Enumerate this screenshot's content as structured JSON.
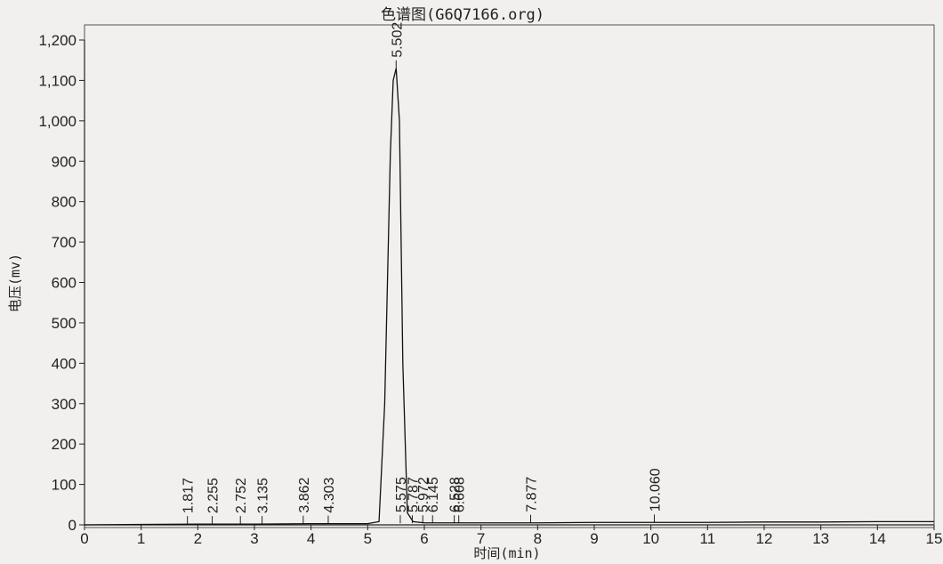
{
  "chart_data": {
    "type": "line",
    "title": "色谱图(G6Q7166.org)",
    "xlabel": "时间(min)",
    "ylabel": "电压(mv)",
    "xlim": [
      0,
      15
    ],
    "ylim": [
      0,
      1200
    ],
    "x_ticks": [
      0,
      1,
      2,
      3,
      4,
      5,
      6,
      7,
      8,
      9,
      10,
      11,
      12,
      13,
      14,
      15
    ],
    "y_ticks": [
      0,
      100,
      200,
      300,
      400,
      500,
      600,
      700,
      800,
      900,
      1000,
      1100,
      1200
    ],
    "y_tick_labels": [
      "0",
      "100",
      "200",
      "300",
      "400",
      "500",
      "600",
      "700",
      "800",
      "900",
      "1,000",
      "1,100",
      "1,200"
    ],
    "grid": false,
    "peak_labels": [
      {
        "label": "1.817",
        "x": 1.817,
        "y": 2
      },
      {
        "label": "2.255",
        "x": 2.255,
        "y": 2
      },
      {
        "label": "2.752",
        "x": 2.752,
        "y": 2
      },
      {
        "label": "3.135",
        "x": 3.135,
        "y": 2
      },
      {
        "label": "3.862",
        "x": 3.862,
        "y": 3
      },
      {
        "label": "4.303",
        "x": 4.303,
        "y": 3
      },
      {
        "label": "5.502",
        "x": 5.502,
        "y": 1130
      },
      {
        "label": "5.575",
        "x": 5.575,
        "y": 4
      },
      {
        "label": "5.787",
        "x": 5.787,
        "y": 4
      },
      {
        "label": "5.972",
        "x": 5.972,
        "y": 4
      },
      {
        "label": "6.145",
        "x": 6.145,
        "y": 4
      },
      {
        "label": "6.528",
        "x": 6.528,
        "y": 4
      },
      {
        "label": "6.608",
        "x": 6.608,
        "y": 4
      },
      {
        "label": "7.877",
        "x": 7.877,
        "y": 5
      },
      {
        "label": "10.060",
        "x": 10.06,
        "y": 6
      }
    ],
    "series": [
      {
        "x": [
          0,
          1,
          2,
          3,
          4,
          5,
          5.2,
          5.3,
          5.4,
          5.45,
          5.502,
          5.56,
          5.62,
          5.7,
          5.8,
          6,
          7,
          8,
          9,
          10,
          11,
          12,
          13,
          14,
          15
        ],
        "values": [
          0,
          1,
          2,
          2,
          3,
          3,
          8,
          300,
          920,
          1100,
          1130,
          1000,
          400,
          30,
          8,
          5,
          5,
          5,
          6,
          6,
          6,
          7,
          7,
          8,
          8
        ]
      }
    ]
  }
}
